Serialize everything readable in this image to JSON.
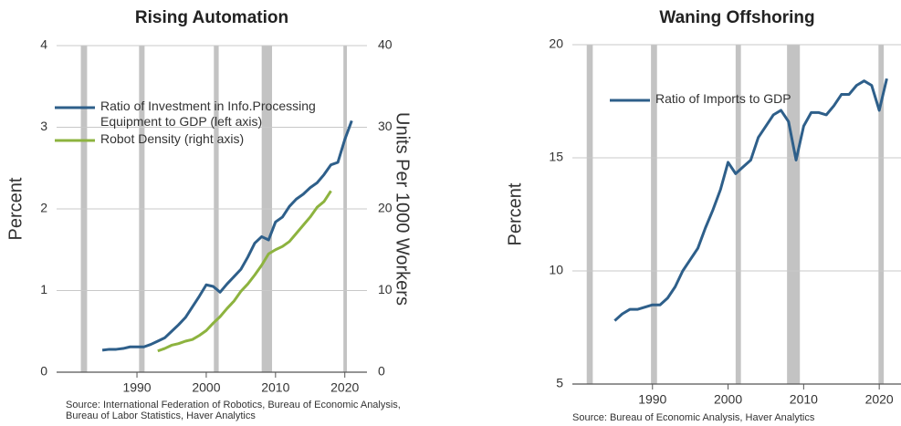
{
  "chart_data": [
    {
      "type": "line",
      "title": "Rising Automation",
      "y_label": "Percent",
      "y2_label": "Units Per 1000 Workers",
      "source": "Source: International Federation of Robotics, Bureau of Economic Analysis, Bureau of Labor Statistics, Haver Analytics",
      "x": [
        1985,
        1986,
        1987,
        1988,
        1989,
        1990,
        1991,
        1992,
        1993,
        1994,
        1995,
        1996,
        1997,
        1998,
        1999,
        2000,
        2001,
        2002,
        2003,
        2004,
        2005,
        2006,
        2007,
        2008,
        2009,
        2010,
        2011,
        2012,
        2013,
        2014,
        2015,
        2016,
        2017,
        2018,
        2019,
        2020,
        2021
      ],
      "series": [
        {
          "name": "Ratio of Investment in Info.Processing Equipment to GDP (left axis)",
          "color": "#2e5f8a",
          "values": [
            0.27,
            0.28,
            0.28,
            0.29,
            0.31,
            0.31,
            0.31,
            0.34,
            0.38,
            0.42,
            0.5,
            0.58,
            0.67,
            0.8,
            0.93,
            1.07,
            1.05,
            0.98,
            1.08,
            1.17,
            1.26,
            1.41,
            1.58,
            1.66,
            1.62,
            1.84,
            1.9,
            2.03,
            2.12,
            2.18,
            2.26,
            2.32,
            2.42,
            2.54,
            2.57,
            2.85,
            3.08
          ]
        },
        {
          "name": "Robot Density (right axis)",
          "color": "#8db33f",
          "axis": "y2",
          "values": [
            null,
            null,
            null,
            null,
            null,
            null,
            null,
            null,
            2.6,
            2.9,
            3.3,
            3.5,
            3.8,
            4.0,
            4.5,
            5.1,
            6.0,
            6.8,
            7.8,
            8.7,
            9.9,
            10.8,
            11.9,
            13.1,
            14.5,
            15.0,
            15.4,
            16.0,
            17.0,
            18.0,
            19.0,
            20.2,
            20.9,
            22.2,
            null,
            null,
            null
          ]
        }
      ],
      "recessions": [
        [
          1981.9,
          1982.8
        ],
        [
          1990.3,
          1991.1
        ],
        [
          2001.1,
          2001.8
        ],
        [
          2008.0,
          2009.5
        ],
        [
          2019.8,
          2020.3
        ]
      ],
      "xlim": [
        1978.4,
        2023.2
      ],
      "xticks": [
        1990,
        2000,
        2010,
        2020
      ],
      "ylim": [
        0,
        4
      ],
      "yticks": [
        0,
        1,
        2,
        3,
        4
      ],
      "y2lim": [
        0,
        40
      ],
      "y2ticks": [
        0,
        10,
        20,
        30,
        40
      ],
      "grid": true,
      "legend": "upper left"
    },
    {
      "type": "line",
      "title": "Waning Offshoring",
      "y_label": "Percent",
      "source": "Source: Bureau of Economic Analysis, Haver Analytics",
      "x": [
        1985,
        1986,
        1987,
        1988,
        1989,
        1990,
        1991,
        1992,
        1993,
        1994,
        1995,
        1996,
        1997,
        1998,
        1999,
        2000,
        2001,
        2002,
        2003,
        2004,
        2005,
        2006,
        2007,
        2008,
        2009,
        2010,
        2011,
        2012,
        2013,
        2014,
        2015,
        2016,
        2017,
        2018,
        2019,
        2020,
        2021
      ],
      "series": [
        {
          "name": "Ratio of Imports to GDP",
          "color": "#2e5f8a",
          "values": [
            7.8,
            8.1,
            8.3,
            8.3,
            8.4,
            8.5,
            8.5,
            8.8,
            9.3,
            10.0,
            10.5,
            11.0,
            11.9,
            12.7,
            13.6,
            14.8,
            14.3,
            14.6,
            14.9,
            15.9,
            16.4,
            16.9,
            17.1,
            16.6,
            14.9,
            16.4,
            17.0,
            17.0,
            16.9,
            17.3,
            17.8,
            17.8,
            18.2,
            18.4,
            18.2,
            17.1,
            18.5
          ]
        }
      ],
      "recessions": [
        [
          1981.3,
          1982.1
        ],
        [
          1989.8,
          1990.6
        ],
        [
          2001.0,
          2001.7
        ],
        [
          2007.8,
          2009.5
        ],
        [
          2019.9,
          2020.6
        ]
      ],
      "xlim": [
        1979.4,
        2023.0
      ],
      "xticks": [
        1990,
        2000,
        2010,
        2020
      ],
      "ylim": [
        5,
        20
      ],
      "yticks": [
        5,
        10,
        15,
        20
      ],
      "grid": true,
      "legend": "upper left"
    }
  ]
}
